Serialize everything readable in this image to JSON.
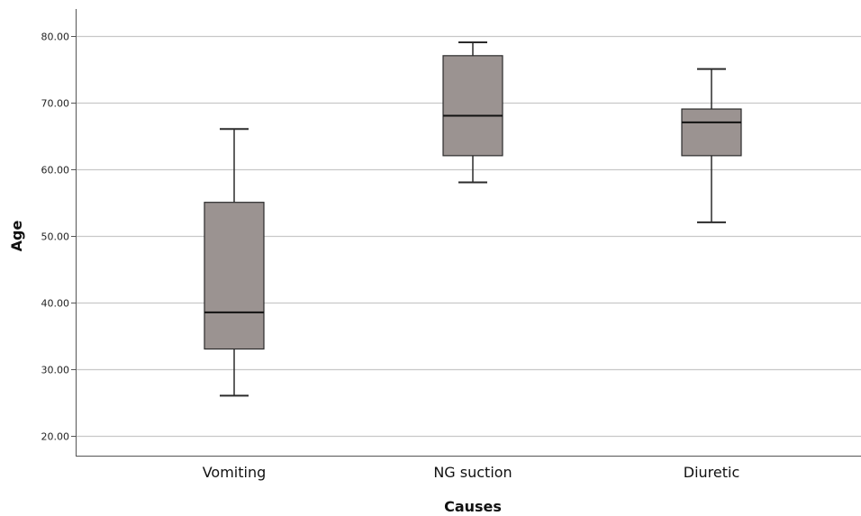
{
  "chart_data": {
    "type": "boxplot",
    "title": "",
    "xlabel": "Causes",
    "ylabel": "Age",
    "ylim": [
      17,
      84
    ],
    "yticks": [
      20,
      30,
      40,
      50,
      60,
      70,
      80
    ],
    "ytick_labels": [
      "20.00",
      "30.00",
      "40.00",
      "50.00",
      "60.00",
      "70.00",
      "80.00"
    ],
    "grid": "horizontal",
    "categories": [
      "Vomiting",
      "NG suction",
      "Diuretic"
    ],
    "boxes": [
      {
        "category": "Vomiting",
        "min": 26,
        "q1": 33,
        "median": 38.5,
        "q3": 55,
        "max": 66
      },
      {
        "category": "NG suction",
        "min": 58,
        "q1": 62,
        "median": 68,
        "q3": 77,
        "max": 79
      },
      {
        "category": "Diuretic",
        "min": 52,
        "q1": 62,
        "median": 67,
        "q3": 69,
        "max": 75
      }
    ],
    "colors": {
      "box_fill": "#9b9391",
      "box_stroke": "#2b2b2b",
      "grid": "#c8c8c8",
      "axis": "#555555"
    }
  }
}
